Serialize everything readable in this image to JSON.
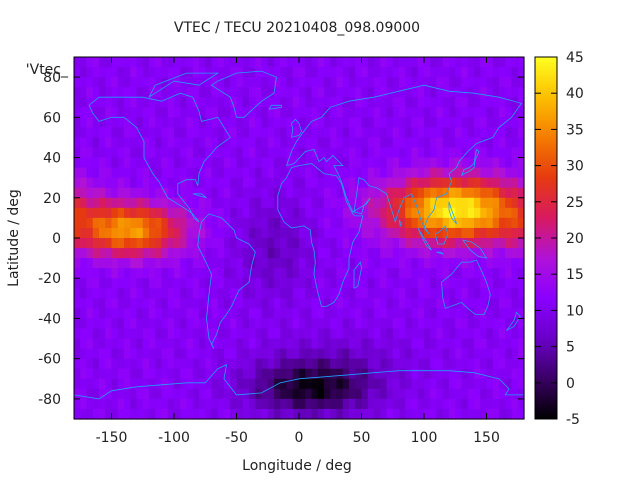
{
  "chart_data": {
    "type": "heatmap",
    "title": "VTEC / TECU 20210408_098.09000",
    "xlabel": "Longitude / deg",
    "ylabel": "Latitude / deg",
    "key_label": "'Vtec_",
    "xlim": [
      -180,
      180
    ],
    "ylim": [
      -90,
      90
    ],
    "x_ticks": [
      -150,
      -100,
      -50,
      0,
      50,
      100,
      150
    ],
    "y_ticks": [
      -80,
      -60,
      -40,
      -20,
      0,
      20,
      40,
      60,
      80
    ],
    "colorbar": {
      "range": [
        -5,
        45
      ],
      "ticks": [
        -5,
        0,
        5,
        10,
        15,
        20,
        25,
        30,
        35,
        40,
        45
      ],
      "palette": [
        "#000000",
        "#3a0064",
        "#6a00c8",
        "#8a00ff",
        "#b012d8",
        "#d81a60",
        "#e63a10",
        "#f47c00",
        "#fcbf00",
        "#ffff20"
      ]
    },
    "features": [
      {
        "name": "background",
        "value": 11
      },
      {
        "name": "equatorial-anomaly-asia",
        "center": [
          125,
          14
        ],
        "peak": 44
      },
      {
        "name": "equatorial-anomaly-pacific",
        "center": [
          -135,
          4
        ],
        "peak": 36
      },
      {
        "name": "atlantic-minimum",
        "center": [
          -20,
          -5
        ],
        "peak": 6
      },
      {
        "name": "antarctic-minimum",
        "center": [
          10,
          -75
        ],
        "peak": -3
      },
      {
        "name": "southern-mid-latitude-low",
        "center": [
          30,
          -60
        ],
        "peak": 4
      }
    ]
  }
}
